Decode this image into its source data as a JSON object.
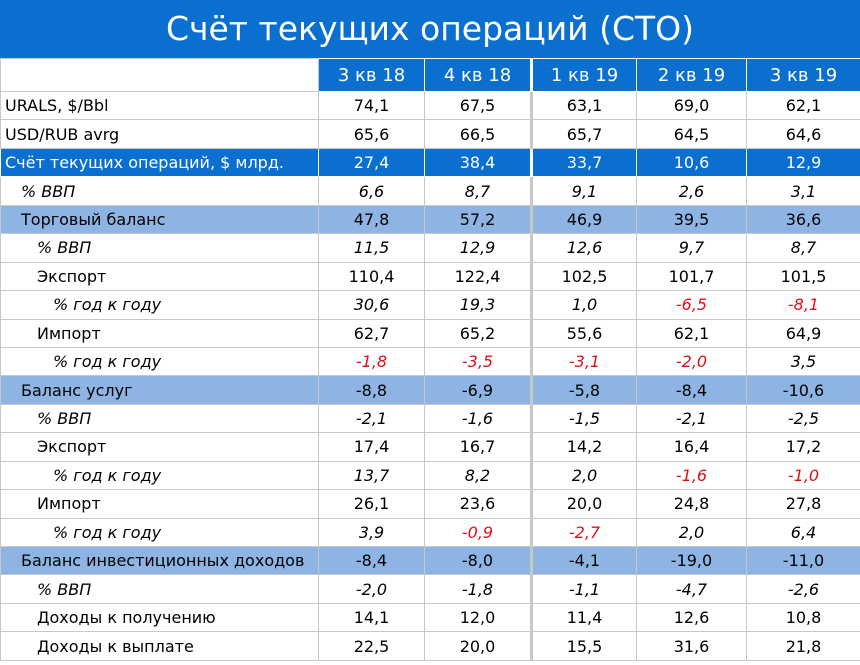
{
  "title": "Счёт текущих операций (СТО)",
  "table": {
    "columns": [
      "3 кв 18",
      "4 кв 18",
      "1 кв 19",
      "2 кв 19",
      "3 кв 19"
    ],
    "rows": [
      {
        "label": "URALS, $/Bbl",
        "style": "plain",
        "level": 0,
        "italic": false,
        "negatives_red": false,
        "cells": [
          "74,1",
          "67,5",
          "63,1",
          "69,0",
          "62,1"
        ]
      },
      {
        "label": "USD/RUB avrg",
        "style": "plain",
        "level": 0,
        "italic": false,
        "negatives_red": false,
        "cells": [
          "65,6",
          "66,5",
          "65,7",
          "64,5",
          "64,6"
        ]
      },
      {
        "label": "Счёт текущих операций, $ млрд.",
        "style": "main",
        "level": 0,
        "italic": false,
        "negatives_red": false,
        "cells": [
          "27,4",
          "38,4",
          "33,7",
          "10,6",
          "12,9"
        ]
      },
      {
        "label": "% ВВП",
        "style": "plain",
        "level": 1,
        "italic": true,
        "negatives_red": false,
        "cells": [
          "6,6",
          "8,7",
          "9,1",
          "2,6",
          "3,1"
        ]
      },
      {
        "label": "Торговый баланс",
        "style": "section",
        "level": 1,
        "italic": false,
        "negatives_red": false,
        "cells": [
          "47,8",
          "57,2",
          "46,9",
          "39,5",
          "36,6"
        ]
      },
      {
        "label": "% ВВП",
        "style": "plain",
        "level": 2,
        "italic": true,
        "negatives_red": false,
        "cells": [
          "11,5",
          "12,9",
          "12,6",
          "9,7",
          "8,7"
        ]
      },
      {
        "label": "Экспорт",
        "style": "plain",
        "level": 2,
        "italic": false,
        "negatives_red": false,
        "cells": [
          "110,4",
          "122,4",
          "102,5",
          "101,7",
          "101,5"
        ]
      },
      {
        "label": "% год к году",
        "style": "plain",
        "level": 3,
        "italic": true,
        "negatives_red": true,
        "cells": [
          "30,6",
          "19,3",
          "1,0",
          "-6,5",
          "-8,1"
        ]
      },
      {
        "label": "Импорт",
        "style": "plain",
        "level": 2,
        "italic": false,
        "negatives_red": false,
        "cells": [
          "62,7",
          "65,2",
          "55,6",
          "62,1",
          "64,9"
        ]
      },
      {
        "label": "% год к году",
        "style": "plain",
        "level": 3,
        "italic": true,
        "negatives_red": true,
        "cells": [
          "-1,8",
          "-3,5",
          "-3,1",
          "-2,0",
          "3,5"
        ]
      },
      {
        "label": "Баланс услуг",
        "style": "section",
        "level": 1,
        "italic": false,
        "negatives_red": false,
        "cells": [
          "-8,8",
          "-6,9",
          "-5,8",
          "-8,4",
          "-10,6"
        ]
      },
      {
        "label": "% ВВП",
        "style": "plain",
        "level": 2,
        "italic": true,
        "negatives_red": false,
        "cells": [
          "-2,1",
          "-1,6",
          "-1,5",
          "-2,1",
          "-2,5"
        ]
      },
      {
        "label": "Экспорт",
        "style": "plain",
        "level": 2,
        "italic": false,
        "negatives_red": false,
        "cells": [
          "17,4",
          "16,7",
          "14,2",
          "16,4",
          "17,2"
        ]
      },
      {
        "label": "% год к году",
        "style": "plain",
        "level": 3,
        "italic": true,
        "negatives_red": true,
        "cells": [
          "13,7",
          "8,2",
          "2,0",
          "-1,6",
          "-1,0"
        ]
      },
      {
        "label": "Импорт",
        "style": "plain",
        "level": 2,
        "italic": false,
        "negatives_red": false,
        "cells": [
          "26,1",
          "23,6",
          "20,0",
          "24,8",
          "27,8"
        ]
      },
      {
        "label": "% год к году",
        "style": "plain",
        "level": 3,
        "italic": true,
        "negatives_red": true,
        "cells": [
          "3,9",
          "-0,9",
          "-2,7",
          "2,0",
          "6,4"
        ]
      },
      {
        "label": "Баланс инвестиционных доходов",
        "style": "section",
        "level": 1,
        "italic": false,
        "negatives_red": false,
        "cells": [
          "-8,4",
          "-8,0",
          "-4,1",
          "-19,0",
          "-11,0"
        ]
      },
      {
        "label": "% ВВП",
        "style": "plain",
        "level": 2,
        "italic": true,
        "negatives_red": false,
        "cells": [
          "-2,0",
          "-1,8",
          "-1,1",
          "-4,7",
          "-2,6"
        ]
      },
      {
        "label": "Доходы к получению",
        "style": "plain",
        "level": 2,
        "italic": false,
        "negatives_red": false,
        "cells": [
          "14,1",
          "12,0",
          "11,4",
          "12,6",
          "10,8"
        ]
      },
      {
        "label": "Доходы к выплате",
        "style": "plain",
        "level": 2,
        "italic": false,
        "negatives_red": false,
        "cells": [
          "22,5",
          "20,0",
          "15,5",
          "31,6",
          "21,8"
        ]
      }
    ]
  }
}
